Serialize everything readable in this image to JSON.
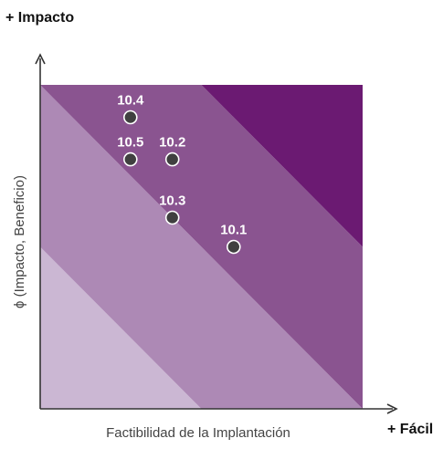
{
  "chart_data": {
    "type": "scatter",
    "title": "",
    "xlabel": "Factibilidad de la Implantación",
    "ylabel": "ϕ (Impacto, Beneficio)",
    "x_end_label": "+ Fácil",
    "y_end_label": "+ Impacto",
    "xlim": [
      0,
      10
    ],
    "ylim": [
      0,
      10
    ],
    "grid": false,
    "bands": [
      {
        "min_sum": 0,
        "max_sum": 5,
        "color": "#cbb7d3"
      },
      {
        "min_sum": 5,
        "max_sum": 10,
        "color": "#ad89b5"
      },
      {
        "min_sum": 10,
        "max_sum": 15,
        "color": "#8a5490"
      },
      {
        "min_sum": 15,
        "max_sum": 20,
        "color": "#6b1a72"
      }
    ],
    "points": [
      {
        "label": "10.4",
        "x": 2.8,
        "y": 9.0
      },
      {
        "label": "10.5",
        "x": 2.8,
        "y": 7.7
      },
      {
        "label": "10.2",
        "x": 4.1,
        "y": 7.7
      },
      {
        "label": "10.3",
        "x": 4.1,
        "y": 5.9
      },
      {
        "label": "10.1",
        "x": 6.0,
        "y": 5.0
      }
    ],
    "colors": {
      "axis": "#333333",
      "point_fill": "#404040",
      "point_stroke": "#ffffff",
      "label": "#ffffff"
    }
  }
}
